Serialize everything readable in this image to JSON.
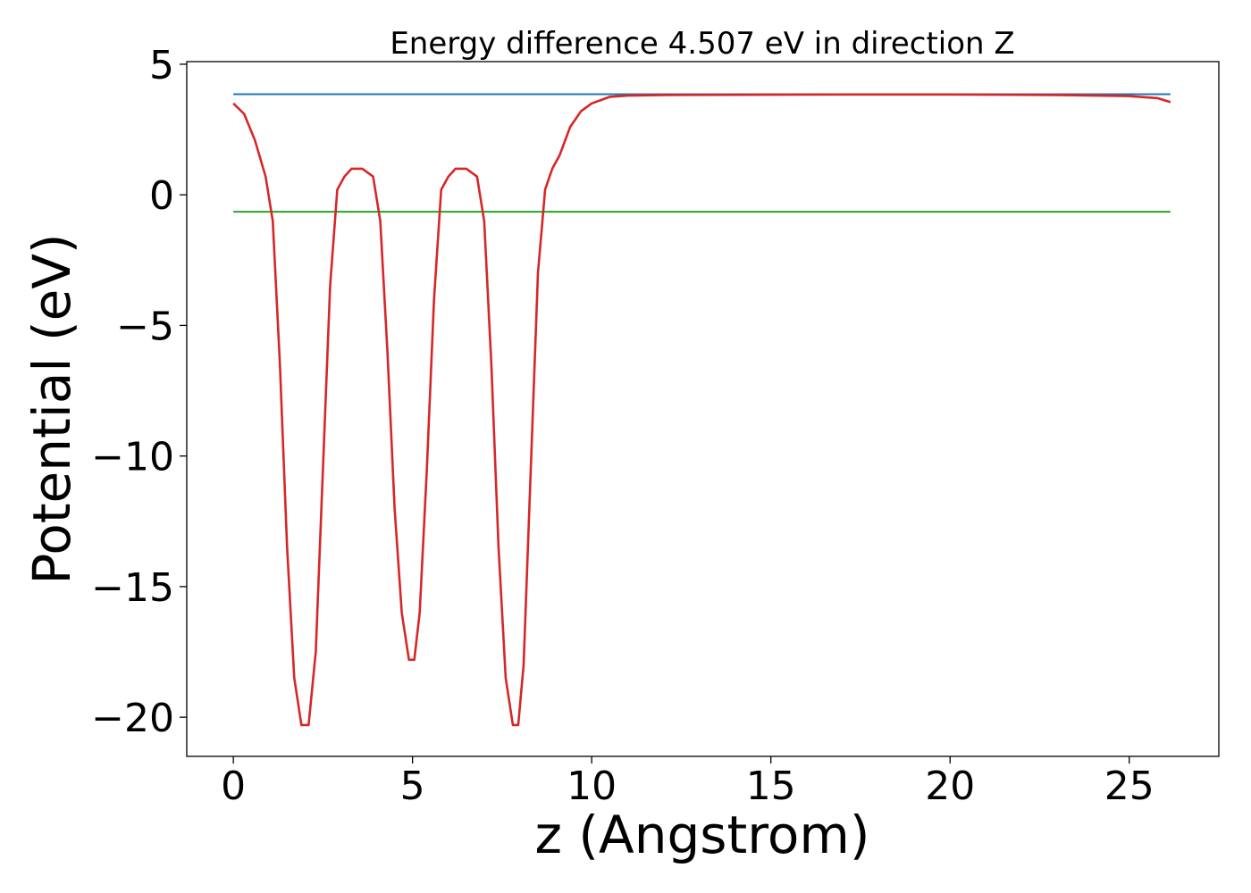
{
  "chart_data": {
    "type": "line",
    "title": "Energy difference 4.507 eV in direction Z",
    "xlabel": "z (Angstrom)",
    "ylabel": "Potential (eV)",
    "xlim": [
      -1.3,
      27.5
    ],
    "ylim": [
      -21.5,
      5.1
    ],
    "x_ticks": [
      0,
      5,
      10,
      15,
      20,
      25
    ],
    "x_tick_labels": [
      "0",
      "5",
      "10",
      "15",
      "20",
      "25"
    ],
    "y_ticks": [
      5,
      0,
      -5,
      -10,
      -15,
      -20
    ],
    "y_tick_labels": [
      "5",
      "0",
      "−5",
      "−10",
      "−15",
      "−20"
    ],
    "grid": false,
    "legend": "none",
    "series": [
      {
        "color": "#d62728",
        "x": [
          0,
          0.3,
          0.6,
          0.9,
          1.1,
          1.3,
          1.5,
          1.7,
          1.9,
          2.1,
          2.3,
          2.5,
          2.7,
          2.9,
          3.1,
          3.3,
          3.6,
          3.9,
          4.1,
          4.3,
          4.5,
          4.7,
          4.9,
          5.05,
          5.2,
          5.4,
          5.6,
          5.8,
          6.0,
          6.2,
          6.5,
          6.8,
          7.0,
          7.2,
          7.4,
          7.6,
          7.8,
          7.95,
          8.1,
          8.3,
          8.5,
          8.7,
          8.9,
          9.1,
          9.4,
          9.7,
          10.0,
          10.5,
          11.0,
          12.0,
          14.0,
          17.0,
          20.0,
          23.0,
          25.0,
          25.8,
          26.15
        ],
        "y": [
          3.5,
          3.1,
          2.1,
          0.7,
          -1.0,
          -6.5,
          -13.5,
          -18.5,
          -20.3,
          -20.3,
          -17.5,
          -10.5,
          -3.5,
          0.2,
          0.7,
          1.0,
          1.0,
          0.7,
          -1.0,
          -6.0,
          -12.0,
          -16.0,
          -17.8,
          -17.8,
          -16.0,
          -10.5,
          -4.0,
          0.2,
          0.7,
          1.0,
          1.0,
          0.7,
          -1.0,
          -6.5,
          -13.5,
          -18.5,
          -20.3,
          -20.3,
          -18.0,
          -10.5,
          -3.0,
          0.2,
          1.0,
          1.5,
          2.6,
          3.2,
          3.5,
          3.75,
          3.8,
          3.82,
          3.83,
          3.84,
          3.84,
          3.82,
          3.78,
          3.7,
          3.55
        ]
      },
      {
        "color": "#1f77b4",
        "x": [
          0,
          26.15
        ],
        "y": [
          3.85,
          3.85
        ]
      },
      {
        "color": "#2ca02c",
        "x": [
          0,
          26.15
        ],
        "y": [
          -0.65,
          -0.65
        ]
      }
    ]
  }
}
